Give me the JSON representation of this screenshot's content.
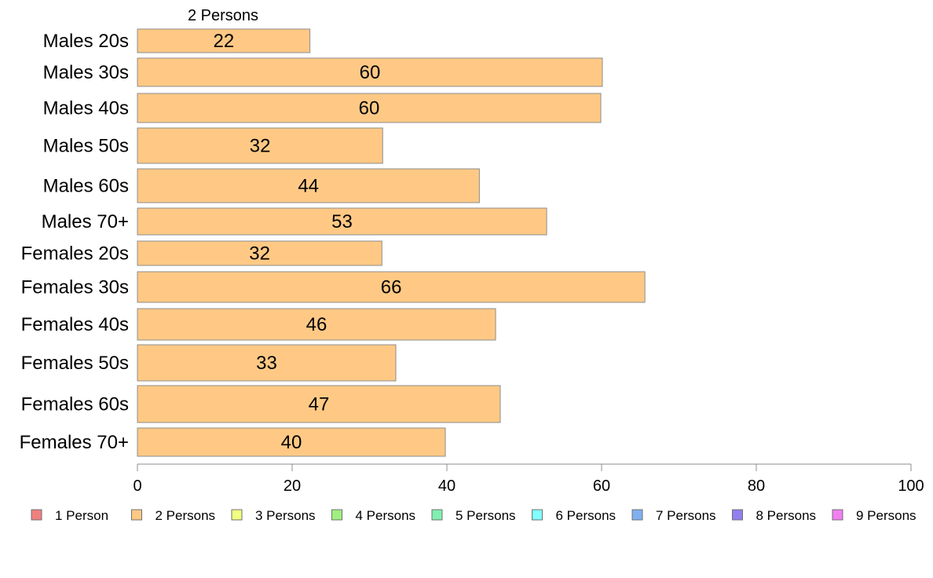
{
  "chart_data": {
    "type": "bar",
    "orientation": "horizontal",
    "top_label": "2 Persons",
    "categories": [
      "Males 20s",
      "Males 30s",
      "Males 40s",
      "Males 50s",
      "Males 60s",
      "Males 70+",
      "Females 20s",
      "Females 30s",
      "Females 40s",
      "Females 50s",
      "Females 60s",
      "Females 70+"
    ],
    "series": [
      {
        "name": "2 Persons",
        "color": "#ffc985",
        "values": [
          22.3,
          60.1,
          59.9,
          31.7,
          44.2,
          52.9,
          31.6,
          65.6,
          46.3,
          33.4,
          46.9,
          39.8
        ],
        "data_labels": [
          "22",
          "60",
          "60",
          "32",
          "44",
          "53",
          "32",
          "66",
          "46",
          "33",
          "47",
          "40"
        ]
      }
    ],
    "x_ticks": [
      "0",
      "20",
      "40",
      "60",
      "80",
      "100"
    ],
    "xlim": [
      0,
      100
    ],
    "grid": false,
    "legend_position": "bottom",
    "legend": [
      {
        "label": "1 Person",
        "color": "#f08080"
      },
      {
        "label": "2 Persons",
        "color": "#ffc985"
      },
      {
        "label": "3 Persons",
        "color": "#f0ff80"
      },
      {
        "label": "4 Persons",
        "color": "#a0f080"
      },
      {
        "label": "5 Persons",
        "color": "#80f0b0"
      },
      {
        "label": "6 Persons",
        "color": "#80ffff"
      },
      {
        "label": "7 Persons",
        "color": "#80b0f0"
      },
      {
        "label": "8 Persons",
        "color": "#9080f0"
      },
      {
        "label": "9 Persons",
        "color": "#f080f0"
      }
    ]
  }
}
